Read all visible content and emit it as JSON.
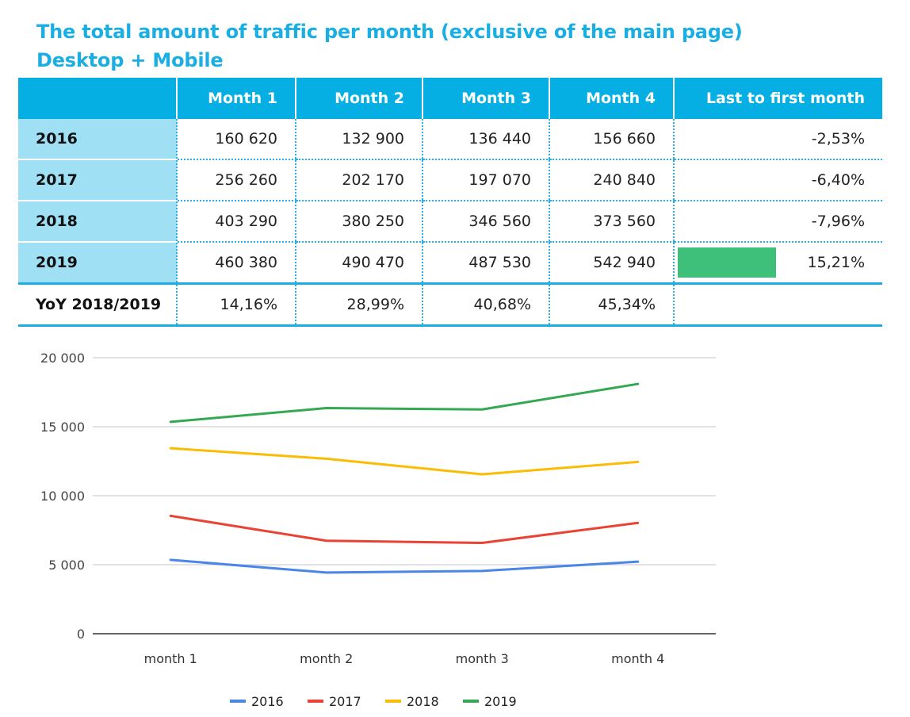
{
  "title": {
    "line1": "The total amount of traffic per month (exclusive of the main page)",
    "line2": "Desktop + Mobile"
  },
  "table": {
    "headers": [
      "",
      "Month 1",
      "Month 2",
      "Month 3",
      "Month 4",
      "Last to first month"
    ],
    "rows": [
      {
        "year": "2016",
        "values": [
          "160 620",
          "132 900",
          "136 440",
          "156 660"
        ],
        "change": "-2,53%"
      },
      {
        "year": "2017",
        "values": [
          "256 260",
          "202 170",
          "197 070",
          "240 840"
        ],
        "change": "-6,40%"
      },
      {
        "year": "2018",
        "values": [
          "403 290",
          "380 250",
          "346 560",
          "373 560"
        ],
        "change": "-7,96%"
      },
      {
        "year": "2019",
        "values": [
          "460 380",
          "490 470",
          "487 530",
          "542 940"
        ],
        "change": "15,21%",
        "highlight_color": "#3ec07a"
      }
    ],
    "yoy": {
      "label": "YoY 2018/2019",
      "values": [
        "14,16%",
        "28,99%",
        "40,68%",
        "45,34%"
      ]
    }
  },
  "chart_data": {
    "type": "line",
    "categories": [
      "month 1",
      "month 2",
      "month 3",
      "month 4"
    ],
    "series": [
      {
        "name": "2016",
        "values": [
          5350,
          4430,
          4550,
          5220
        ],
        "color": "#4a86e8"
      },
      {
        "name": "2017",
        "values": [
          8540,
          6740,
          6580,
          8030
        ],
        "color": "#ea4335"
      },
      {
        "name": "2018",
        "values": [
          13440,
          12680,
          11550,
          12450
        ],
        "color": "#fbbc04"
      },
      {
        "name": "2019",
        "values": [
          15350,
          16350,
          16250,
          18100
        ],
        "color": "#34a853"
      }
    ],
    "yticks": [
      "0",
      "5 000",
      "10 000",
      "15 000",
      "20 000"
    ],
    "ylim": [
      0,
      20000
    ],
    "grid": true,
    "legend_position": "bottom",
    "xlabel": "",
    "ylabel": ""
  }
}
